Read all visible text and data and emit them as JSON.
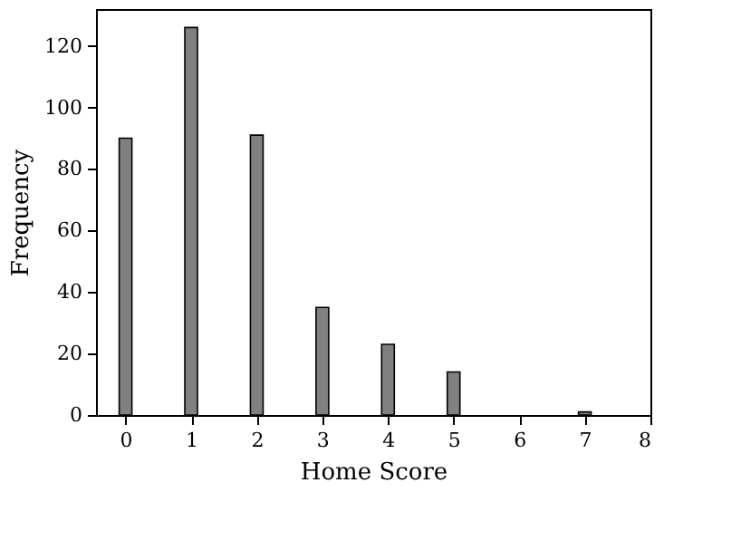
{
  "chart_data": {
    "type": "bar",
    "xlabel": "Home Score",
    "ylabel": "Frequency",
    "x": [
      0,
      1,
      2,
      3,
      4,
      5,
      7
    ],
    "values": [
      90,
      126,
      91,
      35,
      23,
      14,
      1
    ],
    "color": "#808080",
    "xlim": [
      -0.45,
      8
    ],
    "xticks": [
      0,
      1,
      2,
      3,
      4,
      5,
      6,
      7,
      8
    ],
    "ylim": [
      0,
      132
    ],
    "yticks": [
      0,
      20,
      40,
      60,
      80,
      100,
      120
    ],
    "grid": false
  }
}
